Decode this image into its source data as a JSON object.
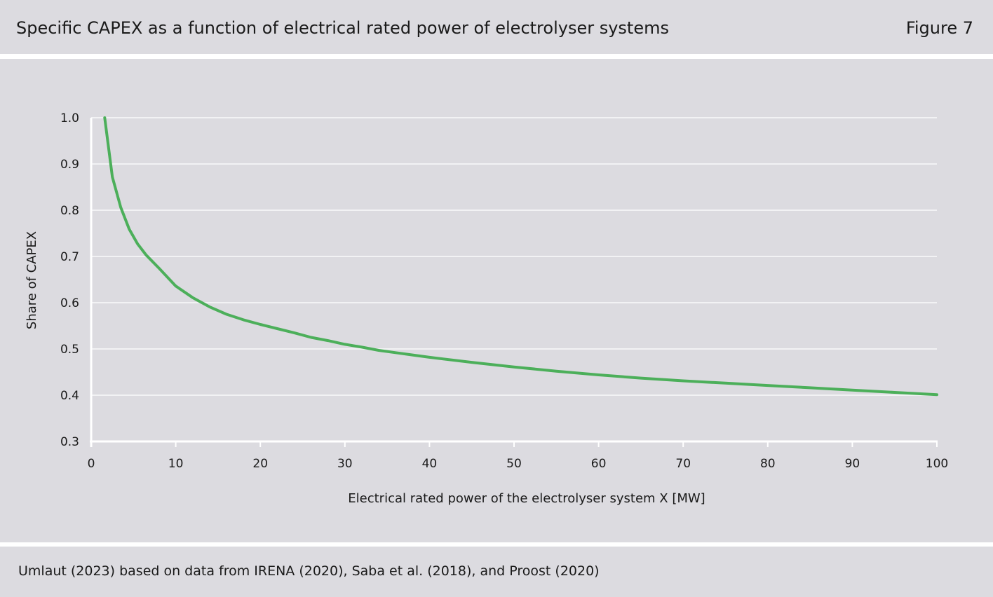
{
  "header": {
    "title": "Specific CAPEX as a function of electrical rated power of electrolyser systems",
    "figure_label": "Figure 7"
  },
  "footer": {
    "source": "Umlaut (2023) based on data from IRENA (2020), Saba et al. (2018), and Proost (2020)"
  },
  "colors": {
    "band_background": "#dcdbe0",
    "gridline": "#f2f2f4",
    "axis": "#ffffff",
    "series": "#4caf5a"
  },
  "chart_data": {
    "type": "line",
    "title": "",
    "xlabel": "Electrical rated power of the electrolyser system X [MW]",
    "ylabel": "Share of CAPEX",
    "xlim": [
      0,
      100
    ],
    "ylim": [
      0.3,
      1.0
    ],
    "x_ticks": [
      0,
      10,
      20,
      30,
      40,
      50,
      60,
      70,
      80,
      90,
      100
    ],
    "y_ticks": [
      0.3,
      0.4,
      0.5,
      0.6,
      0.7,
      0.8,
      0.9,
      1.0
    ],
    "x_tick_labels": [
      "0",
      "10",
      "20",
      "30",
      "40",
      "50",
      "60",
      "70",
      "80",
      "90",
      "100"
    ],
    "y_tick_labels": [
      "0.3",
      "0.4",
      "0.5",
      "0.6",
      "0.7",
      "0.8",
      "0.9",
      "1.0"
    ],
    "grid": true,
    "series": [
      {
        "x": [
          1.6,
          2.5,
          3.5,
          4.5,
          5.5,
          6.5,
          8,
          10,
          12,
          14,
          16,
          18,
          20,
          22,
          24,
          26,
          28,
          30,
          32,
          34,
          36,
          38,
          40,
          45,
          50,
          55,
          60,
          65,
          70,
          75,
          80,
          85,
          90,
          95,
          100
        ],
        "y": [
          1.0,
          0.872,
          0.806,
          0.759,
          0.727,
          0.703,
          0.675,
          0.636,
          0.611,
          0.591,
          0.575,
          0.563,
          0.553,
          0.544,
          0.535,
          0.525,
          0.518,
          0.51,
          0.504,
          0.497,
          0.492,
          0.487,
          0.482,
          0.471,
          0.461,
          0.452,
          0.444,
          0.437,
          0.431,
          0.426,
          0.421,
          0.416,
          0.411,
          0.406,
          0.401
        ]
      }
    ]
  }
}
